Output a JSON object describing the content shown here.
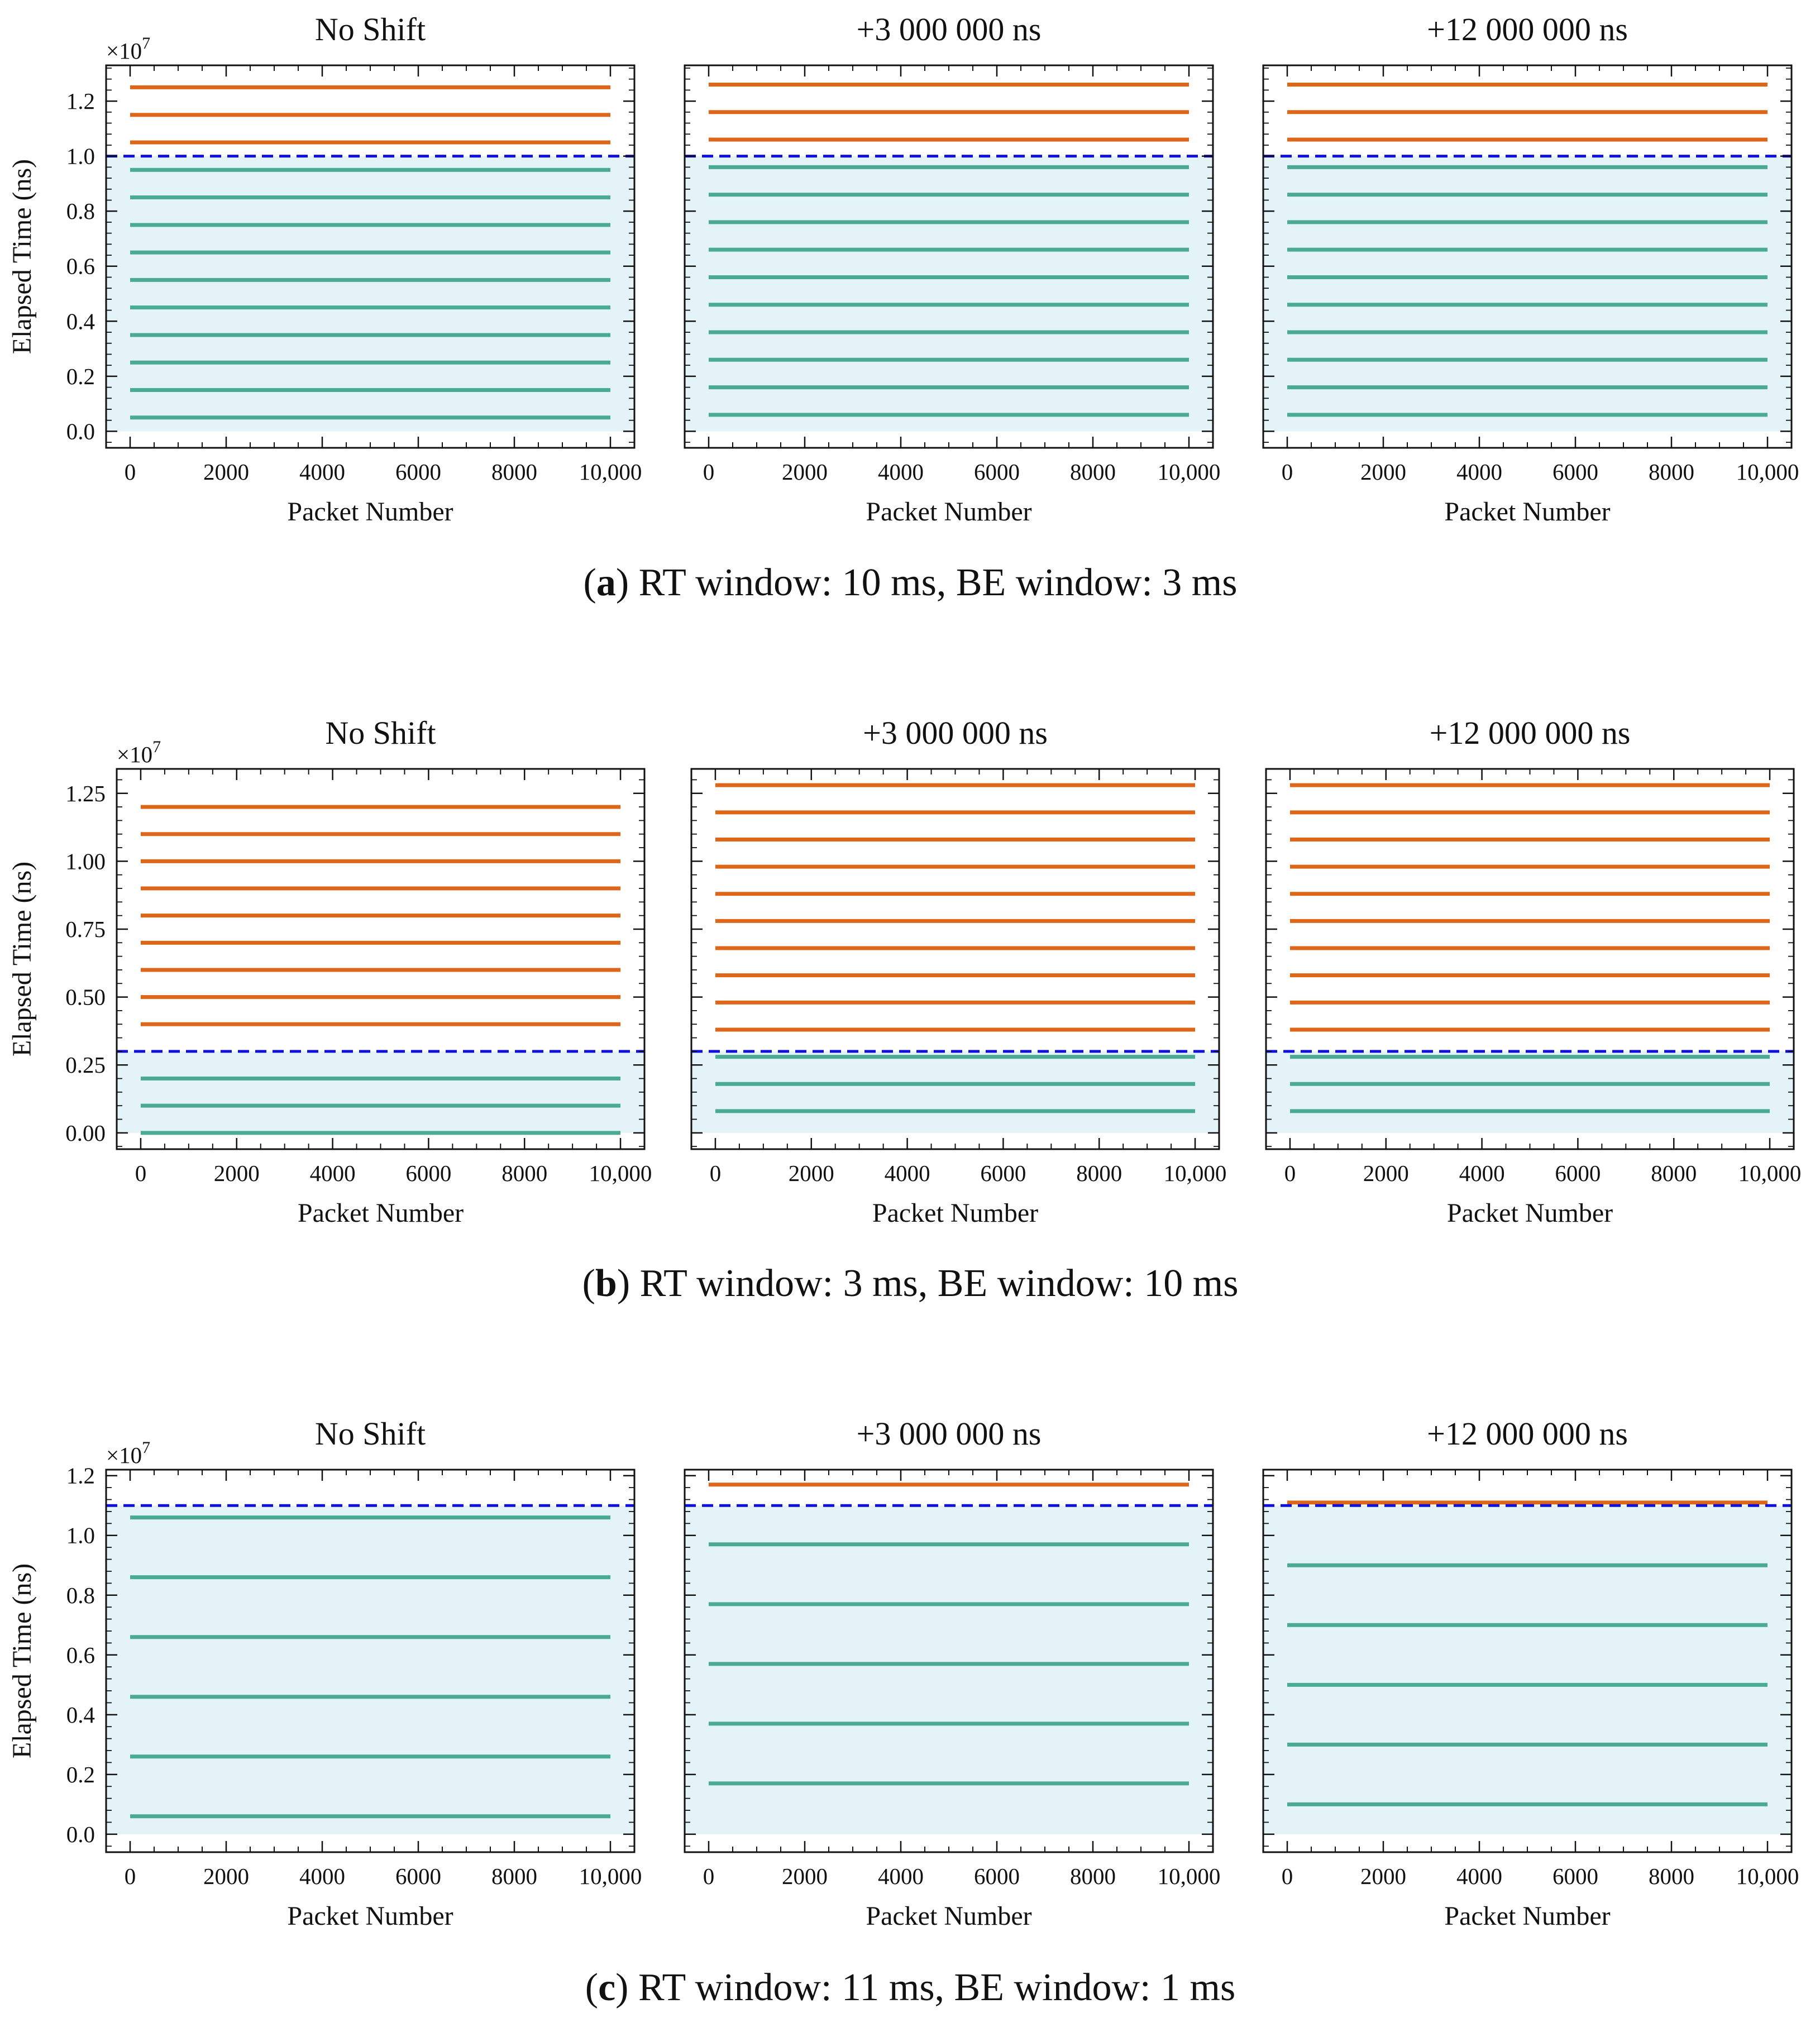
{
  "figure": {
    "captions": [
      {
        "letter": "a",
        "text": " RT window: 10 ms, BE window: 3 ms"
      },
      {
        "letter": "b",
        "text": " RT window: 3 ms, BE window: 10 ms"
      },
      {
        "letter": "c",
        "text": " RT window: 11 ms, BE window: 1 ms"
      }
    ]
  },
  "chart_data": [
    {
      "type": "line",
      "row": "a",
      "title": "No Shift",
      "xlabel": "Packet Number",
      "ylabel": "Elapsed Time (ns)",
      "y_exponent": "7",
      "xlim": [
        -500,
        10500
      ],
      "ylim": [
        -0.06,
        1.33
      ],
      "xticks": [
        0,
        2000,
        4000,
        6000,
        8000,
        10000
      ],
      "xtick_labels": [
        "0",
        "2000",
        "4000",
        "6000",
        "8000",
        "10,000"
      ],
      "yticks": [
        0.0,
        0.2,
        0.4,
        0.6,
        0.8,
        1.0,
        1.2
      ],
      "ytick_labels": [
        "0.0",
        "0.2",
        "0.4",
        "0.6",
        "0.8",
        "1.0",
        "1.2"
      ],
      "threshold": 1.0,
      "shade_range": [
        0,
        1.0
      ],
      "series": [
        {
          "name": "RT",
          "color": "#4aaa94",
          "values": [
            0.05,
            0.15,
            0.25,
            0.35,
            0.45,
            0.55,
            0.65,
            0.75,
            0.85,
            0.95
          ]
        },
        {
          "name": "BE",
          "color": "#dd6619",
          "values": [
            1.05,
            1.15,
            1.25
          ]
        }
      ],
      "colors": {
        "threshold": "#1010dd",
        "shade": "#e4f3f7"
      }
    },
    {
      "type": "line",
      "row": "a",
      "title": "+3 000 000 ns",
      "xlabel": "Packet Number",
      "ylabel": "Elapsed Time (ns)",
      "y_exponent": "7",
      "xlim": [
        -500,
        10500
      ],
      "ylim": [
        -0.06,
        1.33
      ],
      "xticks": [
        0,
        2000,
        4000,
        6000,
        8000,
        10000
      ],
      "xtick_labels": [
        "0",
        "2000",
        "4000",
        "6000",
        "8000",
        "10,000"
      ],
      "yticks": [
        0.0,
        0.2,
        0.4,
        0.6,
        0.8,
        1.0,
        1.2
      ],
      "ytick_labels": [
        "0.0",
        "0.2",
        "0.4",
        "0.6",
        "0.8",
        "1.0",
        "1.2"
      ],
      "threshold": 1.0,
      "shade_range": [
        0,
        1.0
      ],
      "series": [
        {
          "name": "RT",
          "color": "#4aaa94",
          "values": [
            0.06,
            0.16,
            0.26,
            0.36,
            0.46,
            0.56,
            0.66,
            0.76,
            0.86,
            0.96
          ]
        },
        {
          "name": "BE",
          "color": "#dd6619",
          "values": [
            1.06,
            1.16,
            1.26
          ]
        }
      ],
      "colors": {
        "threshold": "#1010dd",
        "shade": "#e4f3f7"
      }
    },
    {
      "type": "line",
      "row": "a",
      "title": "+12 000 000 ns",
      "xlabel": "Packet Number",
      "ylabel": "Elapsed Time (ns)",
      "y_exponent": "7",
      "xlim": [
        -500,
        10500
      ],
      "ylim": [
        -0.06,
        1.33
      ],
      "xticks": [
        0,
        2000,
        4000,
        6000,
        8000,
        10000
      ],
      "xtick_labels": [
        "0",
        "2000",
        "4000",
        "6000",
        "8000",
        "10,000"
      ],
      "yticks": [
        0.0,
        0.2,
        0.4,
        0.6,
        0.8,
        1.0,
        1.2
      ],
      "ytick_labels": [
        "0.0",
        "0.2",
        "0.4",
        "0.6",
        "0.8",
        "1.0",
        "1.2"
      ],
      "threshold": 1.0,
      "shade_range": [
        0,
        1.0
      ],
      "series": [
        {
          "name": "RT",
          "color": "#4aaa94",
          "values": [
            0.06,
            0.16,
            0.26,
            0.36,
            0.46,
            0.56,
            0.66,
            0.76,
            0.86,
            0.96
          ]
        },
        {
          "name": "BE",
          "color": "#dd6619",
          "values": [
            1.06,
            1.16,
            1.26
          ]
        }
      ],
      "colors": {
        "threshold": "#1010dd",
        "shade": "#e4f3f7"
      }
    },
    {
      "type": "line",
      "row": "b",
      "title": "No Shift",
      "xlabel": "Packet Number",
      "ylabel": "Elapsed Time (ns)",
      "y_exponent": "7",
      "xlim": [
        -500,
        10500
      ],
      "ylim": [
        -0.06,
        1.34
      ],
      "xticks": [
        0,
        2000,
        4000,
        6000,
        8000,
        10000
      ],
      "xtick_labels": [
        "0",
        "2000",
        "4000",
        "6000",
        "8000",
        "10,000"
      ],
      "yticks": [
        0.0,
        0.25,
        0.5,
        0.75,
        1.0,
        1.25
      ],
      "ytick_labels": [
        "0.00",
        "0.25",
        "0.50",
        "0.75",
        "1.00",
        "1.25"
      ],
      "threshold": 0.3,
      "shade_range": [
        0,
        0.3
      ],
      "series": [
        {
          "name": "RT",
          "color": "#4aaa94",
          "values": [
            0.0,
            0.1,
            0.2
          ]
        },
        {
          "name": "BE",
          "color": "#dd6619",
          "values": [
            0.4,
            0.5,
            0.6,
            0.7,
            0.8,
            0.9,
            1.0,
            1.1,
            1.2
          ]
        }
      ],
      "colors": {
        "threshold": "#1010dd",
        "shade": "#e4f3f7"
      }
    },
    {
      "type": "line",
      "row": "b",
      "title": "+3 000 000 ns",
      "xlabel": "Packet Number",
      "ylabel": "Elapsed Time (ns)",
      "y_exponent": "7",
      "xlim": [
        -500,
        10500
      ],
      "ylim": [
        -0.06,
        1.34
      ],
      "xticks": [
        0,
        2000,
        4000,
        6000,
        8000,
        10000
      ],
      "xtick_labels": [
        "0",
        "2000",
        "4000",
        "6000",
        "8000",
        "10,000"
      ],
      "yticks": [
        0.0,
        0.25,
        0.5,
        0.75,
        1.0,
        1.25
      ],
      "ytick_labels": [
        "0.00",
        "0.25",
        "0.50",
        "0.75",
        "1.00",
        "1.25"
      ],
      "threshold": 0.3,
      "shade_range": [
        0,
        0.3
      ],
      "series": [
        {
          "name": "RT",
          "color": "#4aaa94",
          "values": [
            0.08,
            0.18,
            0.28
          ]
        },
        {
          "name": "BE",
          "color": "#dd6619",
          "values": [
            0.38,
            0.48,
            0.58,
            0.68,
            0.78,
            0.88,
            0.98,
            1.08,
            1.18,
            1.28
          ]
        }
      ],
      "colors": {
        "threshold": "#1010dd",
        "shade": "#e4f3f7"
      }
    },
    {
      "type": "line",
      "row": "b",
      "title": "+12 000 000 ns",
      "xlabel": "Packet Number",
      "ylabel": "Elapsed Time (ns)",
      "y_exponent": "7",
      "xlim": [
        -500,
        10500
      ],
      "ylim": [
        -0.06,
        1.34
      ],
      "xticks": [
        0,
        2000,
        4000,
        6000,
        8000,
        10000
      ],
      "xtick_labels": [
        "0",
        "2000",
        "4000",
        "6000",
        "8000",
        "10,000"
      ],
      "yticks": [
        0.0,
        0.25,
        0.5,
        0.75,
        1.0,
        1.25
      ],
      "ytick_labels": [
        "0.00",
        "0.25",
        "0.50",
        "0.75",
        "1.00",
        "1.25"
      ],
      "threshold": 0.3,
      "shade_range": [
        0,
        0.3
      ],
      "series": [
        {
          "name": "RT",
          "color": "#4aaa94",
          "values": [
            0.08,
            0.18,
            0.28
          ]
        },
        {
          "name": "BE",
          "color": "#dd6619",
          "values": [
            0.38,
            0.48,
            0.58,
            0.68,
            0.78,
            0.88,
            0.98,
            1.08,
            1.18,
            1.28
          ]
        }
      ],
      "colors": {
        "threshold": "#1010dd",
        "shade": "#e4f3f7"
      }
    },
    {
      "type": "line",
      "row": "c",
      "title": "No Shift",
      "xlabel": "Packet Number",
      "ylabel": "Elapsed Time (ns)",
      "y_exponent": "7",
      "xlim": [
        -500,
        10500
      ],
      "ylim": [
        -0.06,
        1.22
      ],
      "xticks": [
        0,
        2000,
        4000,
        6000,
        8000,
        10000
      ],
      "xtick_labels": [
        "0",
        "2000",
        "4000",
        "6000",
        "8000",
        "10,000"
      ],
      "yticks": [
        0.0,
        0.2,
        0.4,
        0.6,
        0.8,
        1.0,
        1.2
      ],
      "ytick_labels": [
        "0.0",
        "0.2",
        "0.4",
        "0.6",
        "0.8",
        "1.0",
        "1.2"
      ],
      "threshold": 1.1,
      "shade_range": [
        0,
        1.1
      ],
      "series": [
        {
          "name": "RT",
          "color": "#4aaa94",
          "values": [
            0.06,
            0.26,
            0.46,
            0.66,
            0.86,
            1.06
          ]
        },
        {
          "name": "BE",
          "color": "#dd6619",
          "values": []
        }
      ],
      "colors": {
        "threshold": "#1010dd",
        "shade": "#e4f3f7"
      }
    },
    {
      "type": "line",
      "row": "c",
      "title": "+3 000 000 ns",
      "xlabel": "Packet Number",
      "ylabel": "Elapsed Time (ns)",
      "y_exponent": "7",
      "xlim": [
        -500,
        10500
      ],
      "ylim": [
        -0.06,
        1.22
      ],
      "xticks": [
        0,
        2000,
        4000,
        6000,
        8000,
        10000
      ],
      "xtick_labels": [
        "0",
        "2000",
        "4000",
        "6000",
        "8000",
        "10,000"
      ],
      "yticks": [
        0.0,
        0.2,
        0.4,
        0.6,
        0.8,
        1.0,
        1.2
      ],
      "ytick_labels": [
        "0.0",
        "0.2",
        "0.4",
        "0.6",
        "0.8",
        "1.0",
        "1.2"
      ],
      "threshold": 1.1,
      "shade_range": [
        0,
        1.1
      ],
      "series": [
        {
          "name": "RT",
          "color": "#4aaa94",
          "values": [
            0.17,
            0.37,
            0.57,
            0.77,
            0.97
          ]
        },
        {
          "name": "BE",
          "color": "#dd6619",
          "values": [
            1.17
          ]
        }
      ],
      "colors": {
        "threshold": "#1010dd",
        "shade": "#e4f3f7"
      }
    },
    {
      "type": "line",
      "row": "c",
      "title": "+12 000 000 ns",
      "xlabel": "Packet Number",
      "ylabel": "Elapsed Time (ns)",
      "y_exponent": "7",
      "xlim": [
        -500,
        10500
      ],
      "ylim": [
        -0.06,
        1.22
      ],
      "xticks": [
        0,
        2000,
        4000,
        6000,
        8000,
        10000
      ],
      "xtick_labels": [
        "0",
        "2000",
        "4000",
        "6000",
        "8000",
        "10,000"
      ],
      "yticks": [
        0.0,
        0.2,
        0.4,
        0.6,
        0.8,
        1.0,
        1.2
      ],
      "ytick_labels": [
        "0.0",
        "0.2",
        "0.4",
        "0.6",
        "0.8",
        "1.0",
        "1.2"
      ],
      "threshold": 1.1,
      "shade_range": [
        0,
        1.1
      ],
      "series": [
        {
          "name": "RT",
          "color": "#4aaa94",
          "values": [
            0.1,
            0.3,
            0.5,
            0.7,
            0.9
          ]
        },
        {
          "name": "BE",
          "color": "#dd6619",
          "values": [
            1.11
          ]
        }
      ],
      "colors": {
        "threshold": "#1010dd",
        "shade": "#e4f3f7"
      }
    }
  ]
}
